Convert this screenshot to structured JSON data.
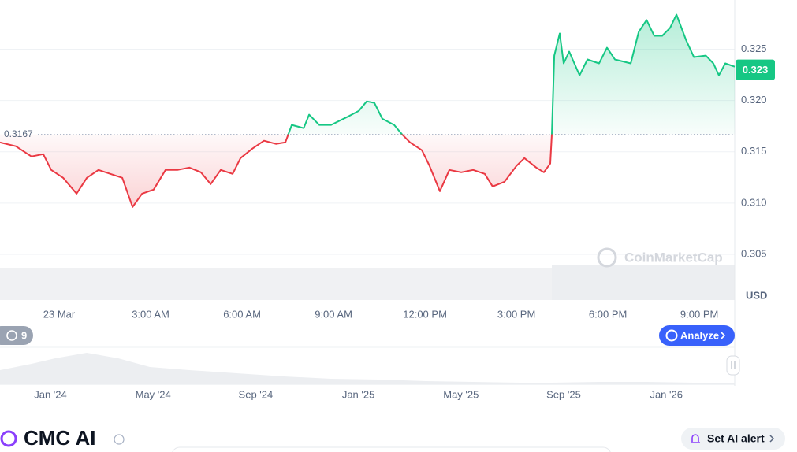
{
  "chart_data": {
    "type": "line",
    "x": [
      -1.94,
      -1.42,
      -0.91,
      -0.52,
      -0.26,
      0.13,
      0.57,
      0.91,
      1.29,
      1.68,
      2.07,
      2.41,
      2.72,
      3.1,
      3.49,
      3.88,
      4.27,
      4.65,
      4.97,
      5.3,
      5.69,
      5.95,
      6.34,
      6.72,
      7.11,
      7.42,
      7.63,
      8.02,
      8.2,
      8.53,
      8.92,
      9.44,
      9.83,
      10.09,
      10.34,
      10.6,
      10.99,
      11.25,
      11.51,
      11.9,
      12.15,
      12.49,
      12.8,
      13.19,
      13.58,
      13.96,
      14.22,
      14.61,
      15.0,
      15.26,
      15.65,
      15.9,
      16.11,
      16.16,
      16.24,
      16.42,
      16.55,
      16.73,
      17.07,
      17.33,
      17.71,
      17.97,
      18.23,
      18.75,
      19.01,
      19.27,
      19.52,
      19.78,
      20.04,
      20.25,
      20.56,
      20.82,
      21.21,
      21.46,
      21.64,
      21.85,
      22.16
    ],
    "values": [
      0.31592,
      0.31554,
      0.31454,
      0.31477,
      0.31323,
      0.31246,
      0.31092,
      0.31246,
      0.31323,
      0.31285,
      0.31246,
      0.30962,
      0.31092,
      0.31131,
      0.31323,
      0.31323,
      0.31346,
      0.313,
      0.31185,
      0.31323,
      0.31285,
      0.31438,
      0.31531,
      0.31608,
      0.31577,
      0.31592,
      0.31762,
      0.31731,
      0.31862,
      0.31762,
      0.31762,
      0.31838,
      0.319,
      0.31992,
      0.31977,
      0.31823,
      0.31762,
      0.31669,
      0.31592,
      0.31515,
      0.31362,
      0.31115,
      0.31323,
      0.313,
      0.31323,
      0.31285,
      0.31162,
      0.31208,
      0.31362,
      0.31438,
      0.31346,
      0.313,
      0.31385,
      0.31669,
      0.32438,
      0.32654,
      0.32362,
      0.32477,
      0.32246,
      0.324,
      0.32362,
      0.32515,
      0.324,
      0.32362,
      0.32669,
      0.32785,
      0.32631,
      0.32631,
      0.32708,
      0.32838,
      0.32592,
      0.32423,
      0.32438,
      0.32362,
      0.32246,
      0.32362,
      0.3233
    ],
    "up_color": "#16c784",
    "down_color": "#ea3943",
    "baseline": 0.3167,
    "current_price": 0.323,
    "xlim": [
      -1.94,
      22.16
    ],
    "ylim": [
      0.305,
      0.3298
    ],
    "xticks": [
      {
        "value": 0,
        "label": "23 Mar"
      },
      {
        "value": 3,
        "label": "3:00 AM"
      },
      {
        "value": 6,
        "label": "6:00 AM"
      },
      {
        "value": 9,
        "label": "9:00 AM"
      },
      {
        "value": 12,
        "label": "12:00 PM"
      },
      {
        "value": 15,
        "label": "3:00 PM"
      },
      {
        "value": 18,
        "label": "6:00 PM"
      },
      {
        "value": 21,
        "label": "9:00 PM"
      }
    ],
    "yticks": [
      0.305,
      {
        "value": 0.31,
        "label": "0.310"
      },
      0.315,
      {
        "value": 0.32,
        "label": "0.320"
      },
      0.325
    ],
    "y_unit": "USD",
    "grid": true
  },
  "ui": {
    "watermark": "CoinMarketCap",
    "history_count": "9",
    "analyze_button": "Analyze",
    "navigator_labels": [
      "Jan '24",
      "May '24",
      "Sep '24",
      "Jan '25",
      "May '25",
      "Sep '25",
      "Jan '26"
    ],
    "section_title": "CMC AI",
    "alert_button": "Set AI alert"
  }
}
